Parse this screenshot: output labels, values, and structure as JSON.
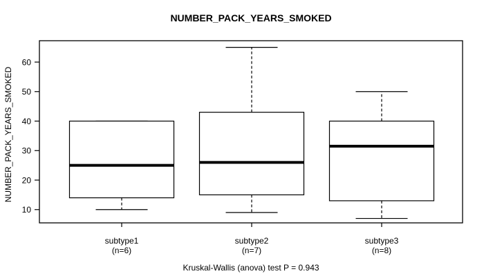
{
  "window": {
    "background": "#ffffff"
  },
  "chart_data": {
    "type": "boxplot",
    "title": "NUMBER_PACK_YEARS_SMOKED",
    "ylabel": "NUMBER_PACK_YEARS_SMOKED",
    "xlabel": "",
    "footnote": "Kruskal-Wallis (anova) test P = 0.943",
    "y_ticks": [
      10,
      20,
      30,
      40,
      50,
      60
    ],
    "ylim": [
      5.5,
      67.25
    ],
    "grid": false,
    "legend": "none",
    "whisker_style": "dashed",
    "colors": {
      "line": "#000000",
      "box_fill": "#ffffff",
      "background": "#ffffff"
    },
    "groups": [
      {
        "label": "subtype1",
        "sublabel": "(n=6)",
        "n": 6,
        "min": 10,
        "q1": 14,
        "median": 25,
        "q3": 40,
        "max": 40
      },
      {
        "label": "subtype2",
        "sublabel": "(n=7)",
        "n": 7,
        "min": 9,
        "q1": 15,
        "median": 26,
        "q3": 43,
        "max": 65
      },
      {
        "label": "subtype3",
        "sublabel": "(n=8)",
        "n": 8,
        "min": 7,
        "q1": 13,
        "median": 31.5,
        "q3": 40,
        "max": 50
      }
    ]
  }
}
